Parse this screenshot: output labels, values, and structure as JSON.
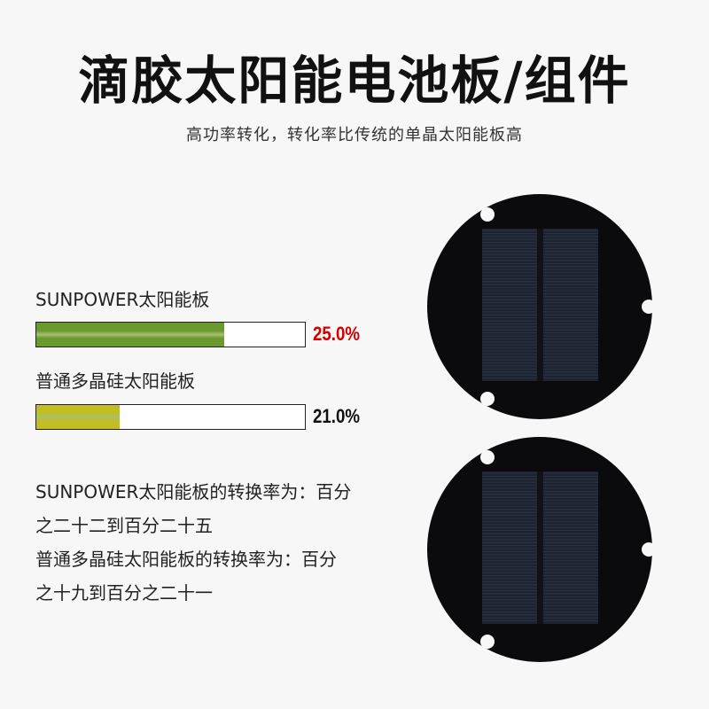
{
  "title": "滴胶太阳能电池板/组件",
  "subtitle": "高功率转化，转化率比传统的单晶太阳能板高",
  "comparison": [
    {
      "label": "SUNPOWER太阳能板",
      "value_text": "25.0%",
      "fill_percent": 70,
      "bar_color": "#6a9a2e",
      "text_color": "#d40000"
    },
    {
      "label": "普通多晶硅太阳能板",
      "value_text": "21.0%",
      "fill_percent": 31,
      "bar_color": "#c2bd22",
      "text_color": "#111111"
    }
  ],
  "description": [
    "SUNPOWER太阳能板的转换率为：百分",
    "之二十二到百分二十五",
    "普通多晶硅太阳能板的转换率为：百分",
    "之十九到百分之二十一"
  ]
}
